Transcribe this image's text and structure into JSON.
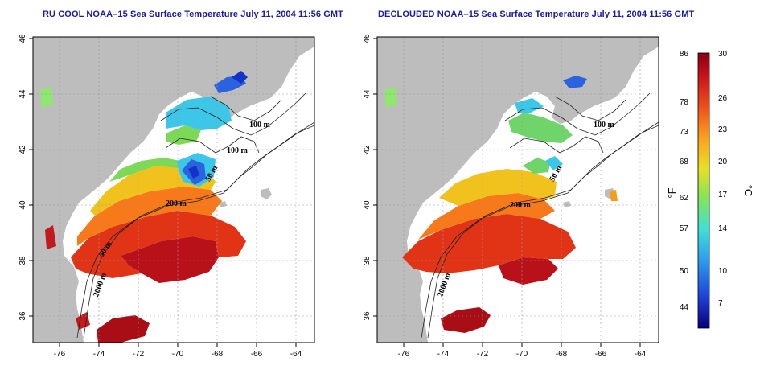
{
  "titles": {
    "left": "RU COOL NOAA–15 Sea Surface Temperature July 11, 2004 11:56 GMT",
    "right": "DECLOUDED NOAA–15 Sea Surface Temperature July 11, 2004 11:56 GMT"
  },
  "axes": {
    "lon_ticks": [
      "-76",
      "-74",
      "-72",
      "-70",
      "-68",
      "-66",
      "-64"
    ],
    "lat_ticks": [
      "36",
      "38",
      "40",
      "42",
      "44",
      "46"
    ],
    "lon_range": [
      -77,
      -63
    ],
    "lat_range": [
      35,
      46
    ]
  },
  "contour_labels": {
    "left": [
      "100 m",
      "100 m",
      "50 m",
      "200 m",
      "50 m",
      "2000 m"
    ],
    "right": [
      "100 m",
      "50 m",
      "200 m",
      "2000 m"
    ]
  },
  "colorbar": {
    "fahrenheit_unit": "°F",
    "celsius_unit": "°C",
    "fahrenheit_ticks": [
      "86",
      "78",
      "73",
      "68",
      "62",
      "57",
      "50",
      "44"
    ],
    "celsius_ticks": [
      "30",
      "26",
      "23",
      "20",
      "17",
      "14",
      "10",
      "7"
    ],
    "range_celsius": [
      4,
      30
    ],
    "colors": [
      "#06007a",
      "#1d3fd8",
      "#2c9ff0",
      "#3fe0d6",
      "#7fe65a",
      "#e8e021",
      "#fba21b",
      "#f0521a",
      "#c8101a",
      "#880010"
    ]
  },
  "colors": {
    "land": "#bdbdbd",
    "ocean_blank": "#ffffff",
    "title": "#1a1aa0"
  }
}
